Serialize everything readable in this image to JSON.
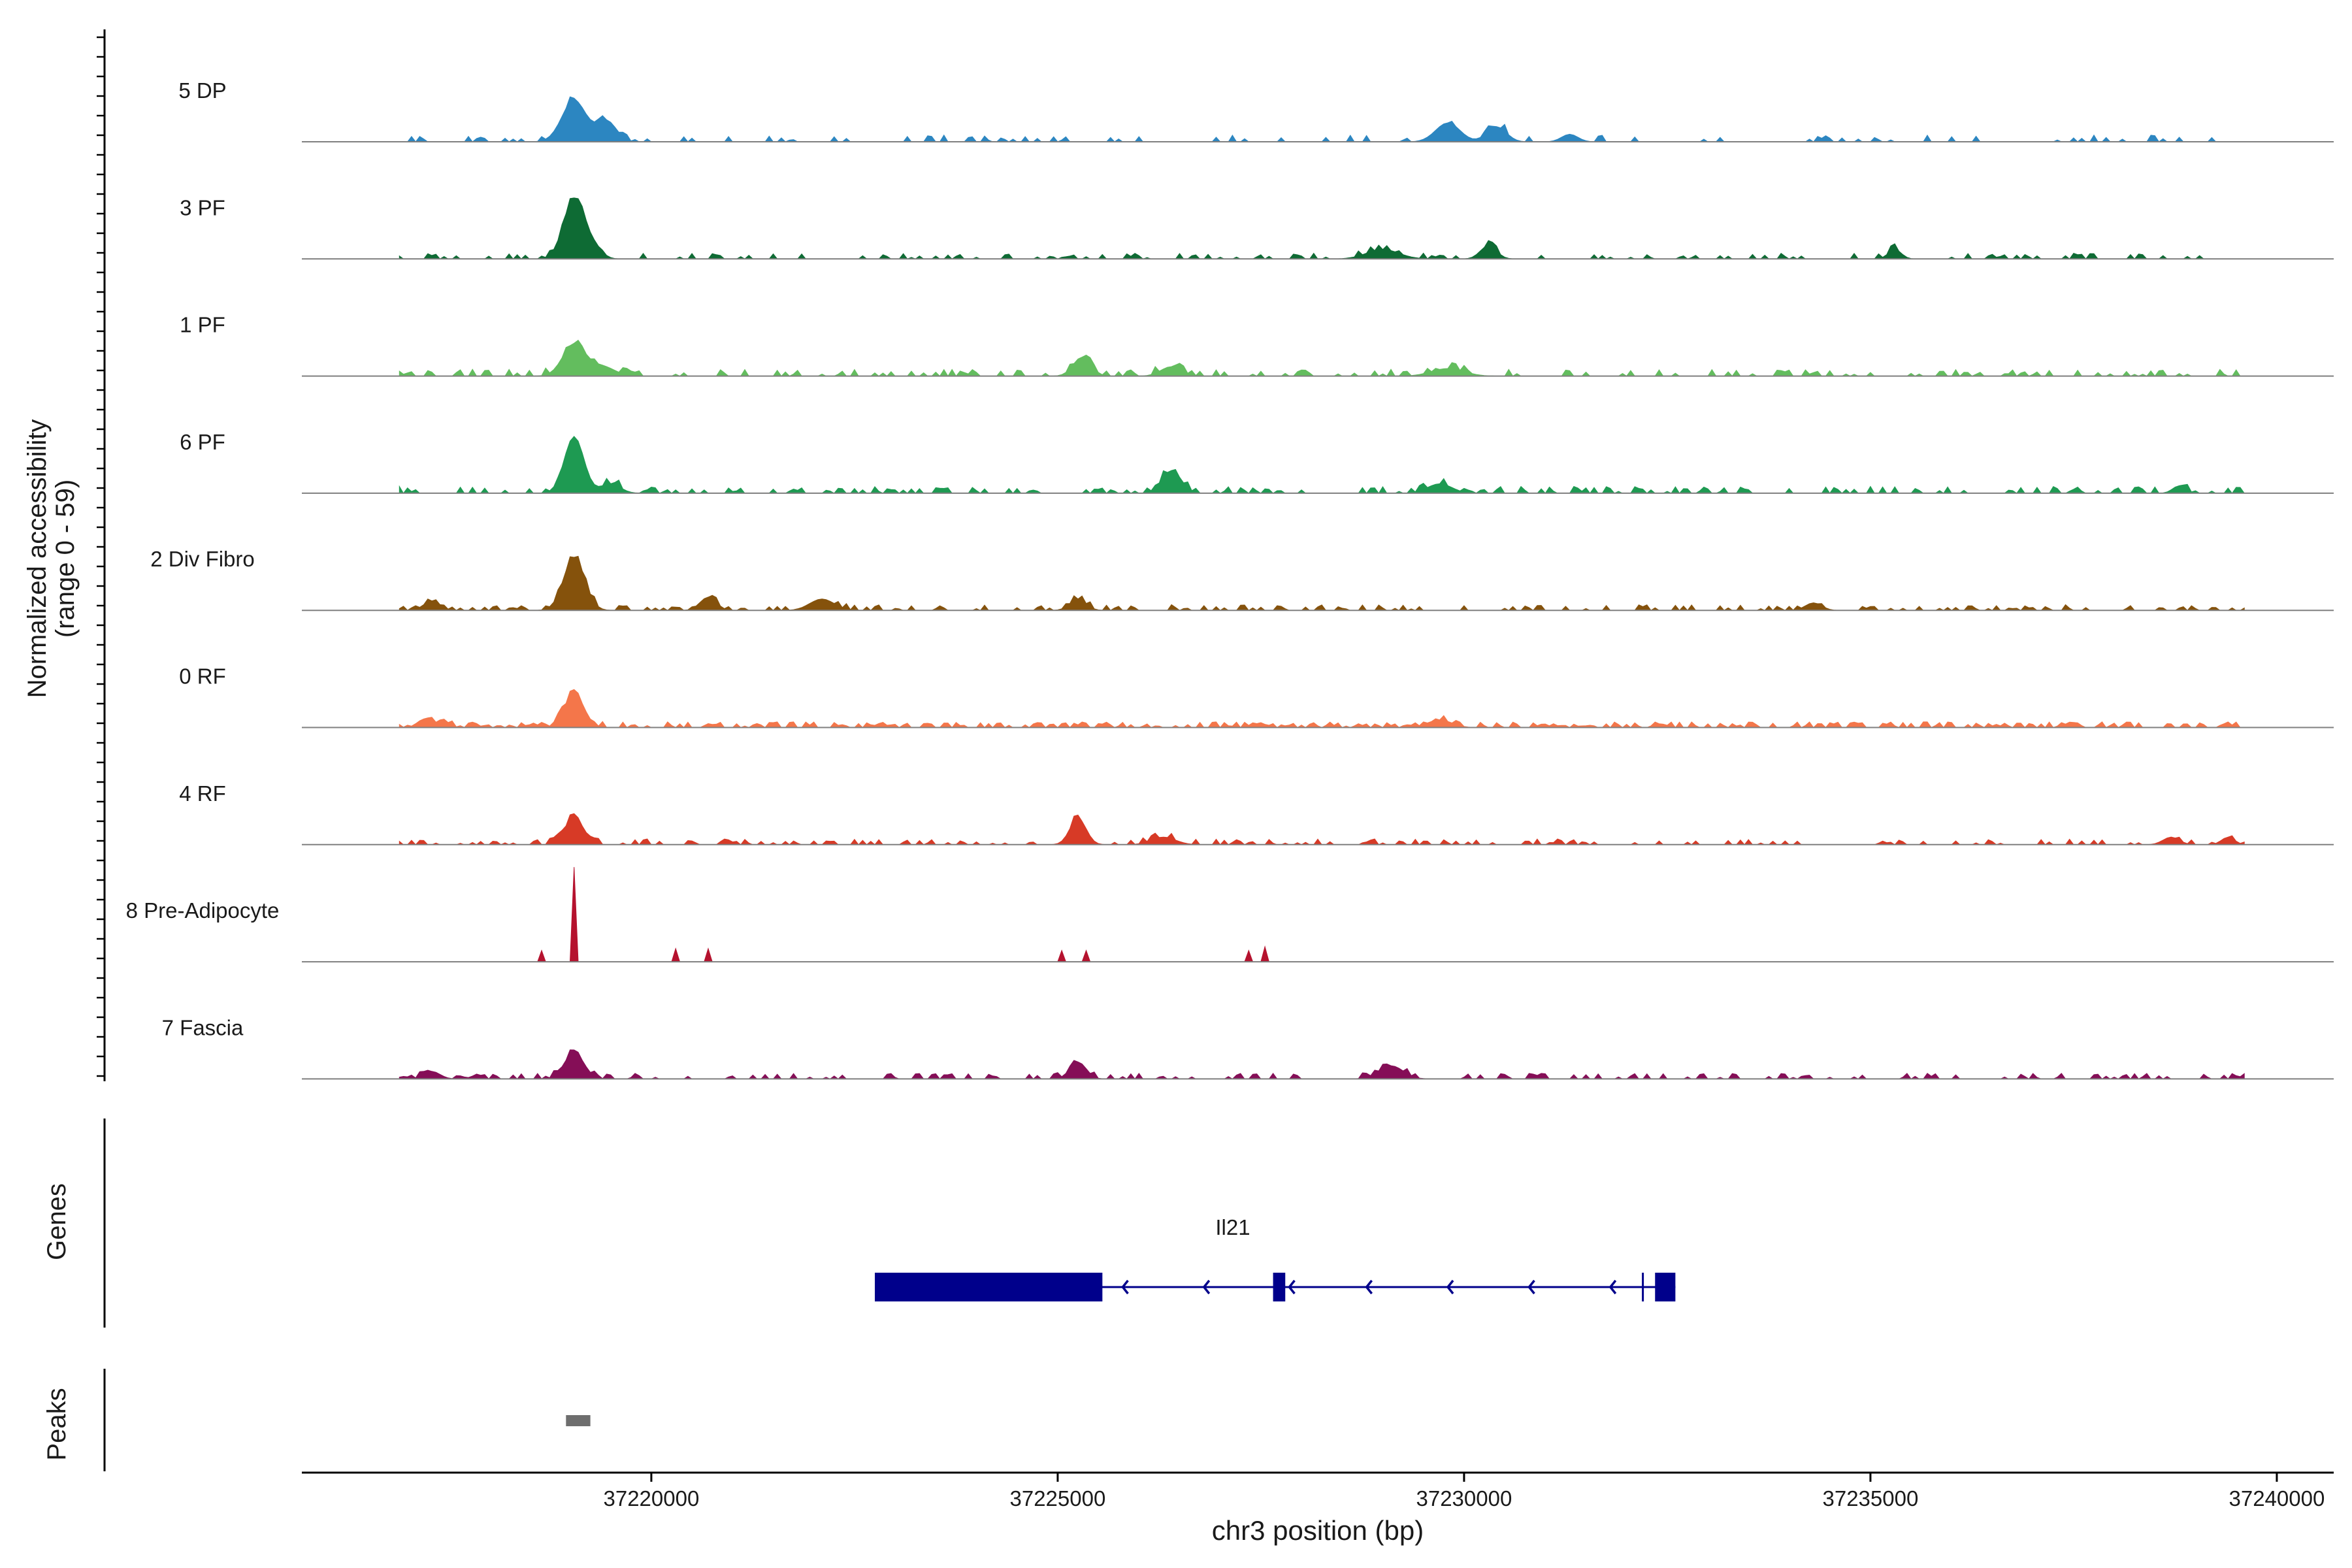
{
  "chart_data": {
    "type": "area",
    "title": "",
    "ylabel_line1": "Normalized accessibility",
    "ylabel_line2": "(range 0 - 59)",
    "y_range": [
      0,
      59
    ],
    "xlabel": "chr3 position (bp)",
    "xlim": [
      37215700,
      37240700
    ],
    "x_ticks": [
      37220000,
      37225000,
      37230000,
      37235000,
      37240000
    ],
    "x_tick_labels": [
      "37220000",
      "37225000",
      "37230000",
      "37235000",
      "37240000"
    ],
    "track_side_labels": {
      "genes": "Genes",
      "peaks": "Peaks"
    },
    "series": [
      {
        "name": "5 DP",
        "color": "#2c86c1",
        "bin_bp": 50,
        "region": [
          37216900,
          37239600
        ],
        "peaks": [
          [
            37219050,
            150,
            22
          ],
          [
            37219450,
            120,
            11
          ],
          [
            37229800,
            150,
            10
          ],
          [
            37230400,
            120,
            8
          ],
          [
            37231300,
            100,
            4
          ],
          [
            37216900,
            60,
            0
          ]
        ],
        "noise": 3,
        "density": 0.22,
        "seed": 11
      },
      {
        "name": "3 PF",
        "color": "#0e6b34",
        "bin_bp": 50,
        "region": [
          37216900,
          37239600
        ],
        "peaks": [
          [
            37219050,
            130,
            32
          ],
          [
            37219300,
            100,
            5
          ],
          [
            37229000,
            200,
            5
          ],
          [
            37230300,
            100,
            7
          ],
          [
            37235300,
            80,
            5
          ]
        ],
        "noise": 2.5,
        "density": 0.25,
        "seed": 23
      },
      {
        "name": "1 PF",
        "color": "#63bd5e",
        "bin_bp": 50,
        "region": [
          37216900,
          37239600
        ],
        "peaks": [
          [
            37219050,
            140,
            17
          ],
          [
            37219400,
            150,
            5
          ],
          [
            37225300,
            110,
            10
          ],
          [
            37226400,
            130,
            5
          ],
          [
            37229800,
            200,
            4
          ]
        ],
        "noise": 3,
        "density": 0.3,
        "seed": 37
      },
      {
        "name": "6 PF",
        "color": "#1e9a52",
        "bin_bp": 50,
        "region": [
          37216900,
          37239600
        ],
        "peaks": [
          [
            37219050,
            120,
            30
          ],
          [
            37219500,
            120,
            5
          ],
          [
            37226400,
            120,
            12
          ],
          [
            37229700,
            150,
            5
          ],
          [
            37238800,
            80,
            4
          ]
        ],
        "noise": 3,
        "density": 0.35,
        "seed": 41
      },
      {
        "name": "2 Div Fibro",
        "color": "#85520c",
        "bin_bp": 50,
        "region": [
          37216900,
          37239600
        ],
        "peaks": [
          [
            37219050,
            130,
            28
          ],
          [
            37217300,
            100,
            5
          ],
          [
            37220700,
            100,
            7
          ],
          [
            37222100,
            150,
            6
          ],
          [
            37225250,
            100,
            6
          ],
          [
            37234300,
            100,
            4
          ]
        ],
        "noise": 2.5,
        "density": 0.33,
        "seed": 53
      },
      {
        "name": "0 RF",
        "color": "#f4764a",
        "bin_bp": 50,
        "region": [
          37216900,
          37239600
        ],
        "peaks": [
          [
            37219050,
            120,
            18
          ],
          [
            37217300,
            150,
            3
          ],
          [
            37229700,
            150,
            4
          ]
        ],
        "noise": 2.5,
        "density": 0.6,
        "seed": 67
      },
      {
        "name": "4 RF",
        "color": "#d73a26",
        "bin_bp": 50,
        "region": [
          37216900,
          37239600
        ],
        "peaks": [
          [
            37219050,
            120,
            14
          ],
          [
            37225250,
            100,
            14
          ],
          [
            37226300,
            150,
            4
          ],
          [
            37238700,
            100,
            4
          ],
          [
            37239400,
            80,
            4
          ]
        ],
        "noise": 2.5,
        "density": 0.33,
        "seed": 79
      },
      {
        "name": "8 Pre-Adipocyte",
        "color": "#b5122e",
        "bin_bp": 50,
        "region": [
          37216900,
          37239600
        ],
        "peaks": [
          [
            37219050,
            80,
            50
          ],
          [
            37218650,
            60,
            6
          ],
          [
            37220300,
            60,
            7
          ],
          [
            37220700,
            60,
            7
          ],
          [
            37225050,
            50,
            6
          ],
          [
            37225350,
            60,
            6
          ],
          [
            37227350,
            60,
            6
          ],
          [
            37227560,
            60,
            8
          ]
        ],
        "noise": 0,
        "density": 0,
        "seed": 83
      },
      {
        "name": "7 Fascia",
        "color": "#850e57",
        "bin_bp": 50,
        "region": [
          37216900,
          37239600
        ],
        "peaks": [
          [
            37219050,
            120,
            14
          ],
          [
            37225250,
            100,
            9
          ],
          [
            37229100,
            150,
            7
          ],
          [
            37217300,
            100,
            4
          ]
        ],
        "noise": 2.5,
        "density": 0.32,
        "seed": 97
      }
    ],
    "genes": [
      {
        "name": "Il21",
        "strand": "-",
        "color": "#00008b",
        "start": 37222750,
        "end": 37232600,
        "exons": [
          [
            37222750,
            37225550
          ],
          [
            37227650,
            37227800
          ],
          [
            37232350,
            37232600
          ]
        ],
        "intron_arrows_bp": [
          37225800,
          37226800,
          37227850,
          37228800,
          37229800,
          37230800,
          37231800
        ],
        "tss_tick_bp": 37232200
      }
    ],
    "peaks": [
      {
        "start": 37218950,
        "end": 37219250,
        "color": "#6e6e6e"
      }
    ]
  }
}
